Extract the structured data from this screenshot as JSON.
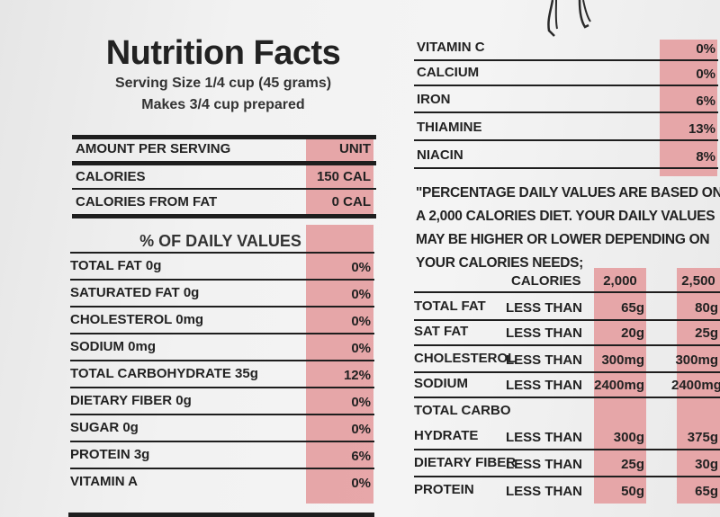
{
  "label": {
    "title": "Nutrition Facts",
    "serving_size": "Serving Size 1/4 cup (45 grams)",
    "makes": "Makes 3/4 cup prepared",
    "amount_header": "AMOUNT PER SERVING",
    "unit_header": "UNIT",
    "calories_label": "CALORIES",
    "calories_value": "150 CAL",
    "fat_calories_label": "CALORIES FROM FAT",
    "fat_calories_value": "0 CAL",
    "daily_values_heading": "% OF DAILY VALUES",
    "nutrients": [
      {
        "name": "TOTAL FAT 0g",
        "percent": "0%"
      },
      {
        "name": "SATURATED FAT 0g",
        "percent": "0%"
      },
      {
        "name": "CHOLESTEROL 0mg",
        "percent": "0%"
      },
      {
        "name": "SODIUM 0mg",
        "percent": "0%"
      },
      {
        "name": "TOTAL CARBOHYDRATE 35g",
        "percent": "12%"
      },
      {
        "name": "DIETARY FIBER 0g",
        "percent": "0%"
      },
      {
        "name": "SUGAR 0g",
        "percent": "0%"
      },
      {
        "name": "PROTEIN 3g",
        "percent": "6%"
      },
      {
        "name": "VITAMIN A",
        "percent": "0%"
      }
    ],
    "vitamins": [
      {
        "name": "VITAMIN C",
        "percent": "0%"
      },
      {
        "name": "CALCIUM",
        "percent": "0%"
      },
      {
        "name": "IRON",
        "percent": "6%"
      },
      {
        "name": "THIAMINE",
        "percent": "13%"
      },
      {
        "name": "NIACIN",
        "percent": "8%"
      }
    ],
    "footnote_lines": [
      "\"PERCENTAGE DAILY VALUES ARE BASED ON",
      "A 2,000 CALORIES DIET. YOUR DAILY VALUES",
      "MAY BE HIGHER OR LOWER DEPENDING ON",
      "YOUR CALORIES NEEDS;"
    ],
    "reference": {
      "calories_header": "CALORIES",
      "col_2000": "2,000",
      "col_2500": "2,500",
      "rows": [
        {
          "name": "TOTAL FAT",
          "qualifier": "LESS THAN",
          "v2000": "65g",
          "v2500": "80g"
        },
        {
          "name": "SAT FAT",
          "qualifier": "LESS THAN",
          "v2000": "20g",
          "v2500": "25g"
        },
        {
          "name": "CHOLESTEROL",
          "qualifier": "LESS THAN",
          "v2000": "300mg",
          "v2500": "300mg"
        },
        {
          "name": "SODIUM",
          "qualifier": "LESS THAN",
          "v2000": "2400mg",
          "v2500": "2400mg"
        },
        {
          "name": "TOTAL CARBO",
          "qualifier": "",
          "v2000": "",
          "v2500": ""
        },
        {
          "name": "HYDRATE",
          "qualifier": "LESS THAN",
          "v2000": "300g",
          "v2500": "375g"
        },
        {
          "name": "DIETARY FIBER",
          "qualifier": "LESS THAN",
          "v2000": "25g",
          "v2500": "30g"
        },
        {
          "name": "PROTEIN",
          "qualifier": "LESS THAN",
          "v2000": "50g",
          "v2500": "65g"
        }
      ]
    }
  }
}
